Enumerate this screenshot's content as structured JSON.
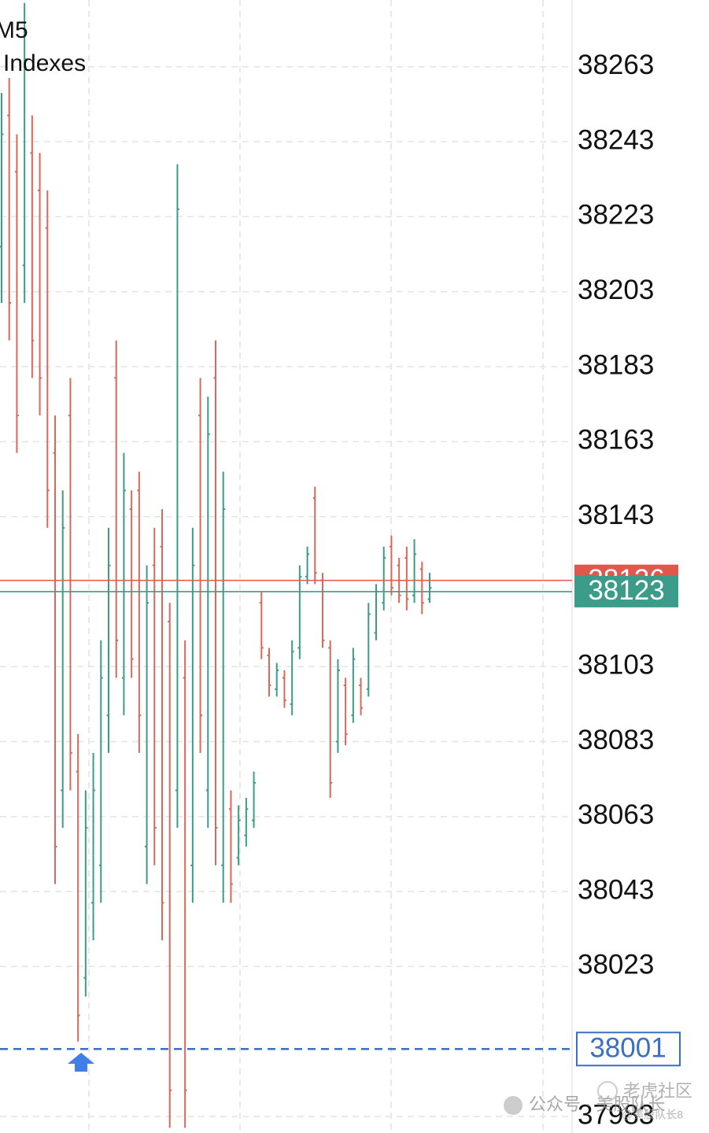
{
  "header": {
    "timeframe": "M5",
    "market": "Indexes"
  },
  "watermark": {
    "channel": "公众号 · 美股队长",
    "community": "老虎社区",
    "handle": "@美股队长8"
  },
  "chart_data": {
    "type": "ohlc",
    "categories": [
      null,
      null,
      null,
      null,
      null,
      null,
      null,
      null,
      null,
      null,
      null,
      null,
      null,
      null,
      null,
      null,
      null,
      null,
      null,
      null,
      null,
      null,
      null,
      null,
      null,
      null,
      null,
      null,
      null,
      null,
      null,
      null,
      null,
      null,
      null,
      null,
      null,
      null,
      null,
      null,
      null,
      null,
      null,
      null,
      null,
      null,
      null,
      null,
      null,
      null,
      null,
      null,
      null,
      null,
      null,
      null,
      null
    ],
    "open": [
      38215,
      38250,
      38235,
      38210,
      38240,
      38230,
      38220,
      38160,
      38070,
      38170,
      38075,
      38020,
      38040,
      38050,
      38090,
      38180,
      38100,
      38145,
      38150,
      38055,
      38130,
      38135,
      38115,
      38070,
      38100,
      38050,
      38170,
      38070,
      38180,
      38050,
      38065,
      38052,
      38058,
      38062,
      38120,
      38106,
      38097,
      38100,
      38093,
      38108,
      38127,
      38148,
      38126,
      38108,
      38083,
      38098,
      38090,
      38098,
      38097,
      38112,
      38120,
      38135,
      38130,
      38132,
      38122,
      38129,
      38121
    ],
    "high": [
      38256,
      38260,
      38245,
      38280,
      38250,
      38240,
      38230,
      38170,
      38150,
      38180,
      38085,
      38070,
      38080,
      38110,
      38140,
      38190,
      38160,
      38150,
      38155,
      38130,
      38140,
      38145,
      38120,
      38237,
      38110,
      38140,
      38180,
      38175,
      38190,
      38155,
      38070,
      38066,
      38068,
      38075,
      38123,
      38108,
      38104,
      38102,
      38110,
      38130,
      38135,
      38151,
      38128,
      38110,
      38105,
      38100,
      38108,
      38100,
      38120,
      38125,
      38135,
      38138,
      38132,
      38135,
      38137,
      38131,
      38128
    ],
    "low": [
      38200,
      38190,
      38160,
      38200,
      38180,
      38170,
      38140,
      38045,
      38060,
      38070,
      38003,
      38015,
      38030,
      38040,
      38080,
      38100,
      38090,
      38100,
      38080,
      38045,
      38050,
      38030,
      37980,
      38060,
      37980,
      38040,
      38080,
      38060,
      38050,
      38040,
      38040,
      38050,
      38055,
      38060,
      38105,
      38095,
      38095,
      38092,
      38090,
      38105,
      38125,
      38125,
      38108,
      38068,
      38080,
      38082,
      38088,
      38090,
      38095,
      38110,
      38118,
      38122,
      38120,
      38118,
      38120,
      38117,
      38120
    ],
    "close": [
      38245,
      38200,
      38170,
      38265,
      38190,
      38180,
      38150,
      38055,
      38140,
      38080,
      38010,
      38060,
      38070,
      38100,
      38130,
      38110,
      38150,
      38105,
      38090,
      38120,
      38060,
      38040,
      37990,
      38225,
      37990,
      38130,
      38090,
      38165,
      38060,
      38145,
      38045,
      38062,
      38065,
      38072,
      38108,
      38098,
      38102,
      38094,
      38107,
      38127,
      38133,
      38128,
      38110,
      38072,
      38102,
      38085,
      38105,
      38092,
      38117,
      38123,
      38132,
      38124,
      38122,
      38121,
      38133,
      38120,
      38124
    ],
    "up_color": "#3c9c8a",
    "down_color": "#d9685c",
    "ylim": [
      37978.6,
      38280.8
    ],
    "yticks": [
      38263,
      38243,
      38223,
      38203,
      38183,
      38163,
      38143,
      38103,
      38083,
      38063,
      38043,
      38023,
      37983
    ],
    "grid": true,
    "price_lines": [
      {
        "value": 38126,
        "color": "#e0574b"
      },
      {
        "value": 38123,
        "color": "#3c9c8a"
      },
      {
        "value": 38001,
        "color": "#3b6fc2",
        "dashed": true
      }
    ]
  }
}
